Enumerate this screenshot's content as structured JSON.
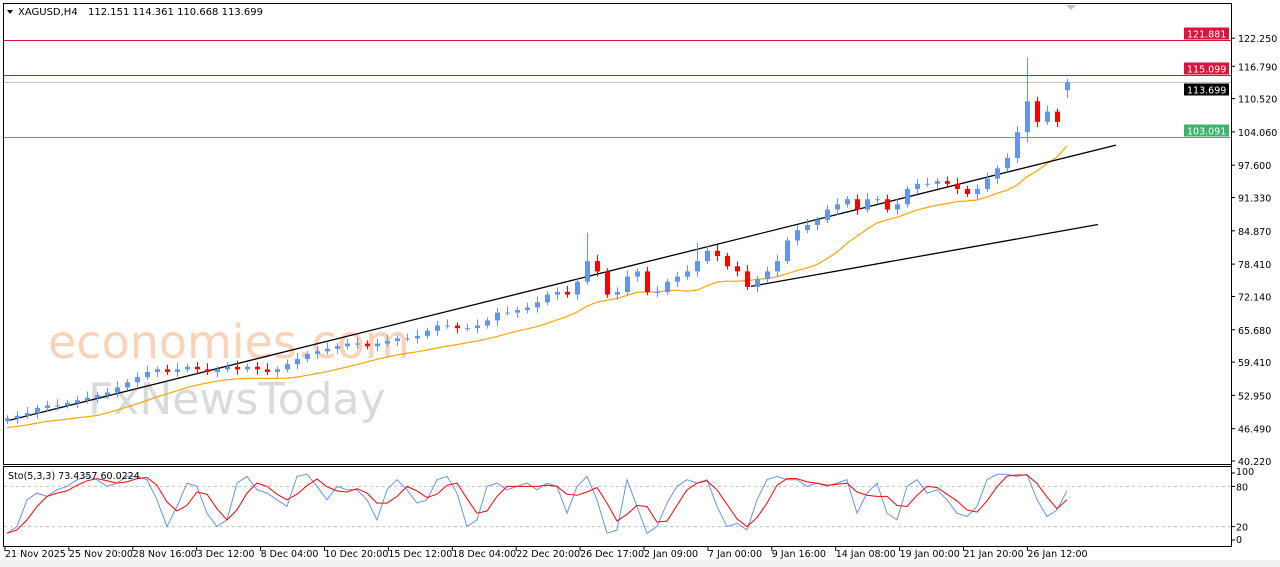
{
  "header": {
    "symbol": "XAGUSD,H4",
    "ohlc": "112.151 114.361 110.668 113.699"
  },
  "watermark": {
    "line1": "economies.com",
    "line2": "FxNewsToday"
  },
  "colors": {
    "bull": "#6495ED",
    "bear": "#FF0000",
    "ma": "#FFA500",
    "trend": "#000000",
    "resistance": "#DC143C",
    "support": "#3CB371",
    "current": "#C0C0C0",
    "stoch_main": "#6495ED",
    "stoch_signal": "#FF0000"
  },
  "chart_data": {
    "type": "candlestick",
    "symbol": "XAGUSD",
    "timeframe": "H4",
    "ylim": [
      40.22,
      123.25
    ],
    "yticks": [
      "122.250",
      "116.790",
      "110.520",
      "104.060",
      "97.600",
      "91.330",
      "84.870",
      "78.410",
      "72.140",
      "65.680",
      "59.410",
      "52.950",
      "46.490",
      "40.220"
    ],
    "ytick_values": [
      122.25,
      116.79,
      110.52,
      104.06,
      97.6,
      91.33,
      84.87,
      78.41,
      72.14,
      65.68,
      59.41,
      52.95,
      46.49,
      40.22
    ],
    "xticks": [
      "21 Nov 2025",
      "25 Nov 20:00",
      "28 Nov 16:00",
      "3 Dec 12:00",
      "8 Dec 04:00",
      "10 Dec 20:00",
      "15 Dec 12:00",
      "18 Dec 04:00",
      "22 Dec 20:00",
      "26 Dec 17:00",
      "2 Jan 09:00",
      "7 Jan 00:00",
      "9 Jan 16:00",
      "14 Jan 08:00",
      "19 Jan 00:00",
      "21 Jan 20:00",
      "26 Jan 12:00"
    ],
    "closes": [
      48.5,
      49,
      49.5,
      50.5,
      51,
      51,
      51.5,
      52,
      52.5,
      53,
      53.5,
      54.5,
      55.5,
      56.5,
      57.5,
      58,
      57.5,
      58,
      58.5,
      58,
      57.5,
      58,
      58.5,
      58,
      58.5,
      58,
      57.5,
      58,
      59,
      60,
      61,
      61.5,
      62,
      62.5,
      63,
      63,
      62.5,
      63,
      63.5,
      64,
      64,
      64.5,
      65.5,
      66.5,
      66.5,
      66,
      66,
      66.5,
      67.5,
      69,
      69,
      69.5,
      70,
      71,
      72.5,
      73,
      72.5,
      75,
      79,
      77,
      72.5,
      73,
      76,
      77,
      73,
      73,
      75,
      76,
      77,
      79,
      81,
      80,
      78,
      77,
      74,
      75.5,
      77,
      79,
      83,
      85,
      86,
      87,
      89,
      90,
      91,
      89,
      91,
      91,
      89,
      90,
      93,
      94,
      94,
      94.5,
      94,
      93,
      92,
      93,
      95,
      97,
      99,
      104,
      110,
      106,
      108,
      106,
      113.699
    ],
    "last_bar": {
      "open": 112.151,
      "high": 114.361,
      "low": 110.668,
      "close": 113.699
    },
    "spikes": [
      {
        "bar": 58,
        "high": 84.5
      },
      {
        "bar": 69,
        "high": 82.5
      },
      {
        "bar": 102,
        "high": 118.5,
        "low": 102
      }
    ],
    "horizontal_levels": [
      {
        "price": 121.881,
        "label": "121.881",
        "kind": "resistance"
      },
      {
        "price": 115.099,
        "label": "115.099",
        "kind": "resistance"
      },
      {
        "price": 113.699,
        "label": "113.699",
        "kind": "current"
      },
      {
        "price": 103.091,
        "label": "103.091",
        "kind": "support"
      }
    ],
    "trendlines": [
      {
        "bar1": 0,
        "price1": 48.0,
        "bar2": 110.9,
        "price2": 101.5
      },
      {
        "bar1": 74.4,
        "price1": 74.1,
        "bar2": 109.1,
        "price2": 86.1
      }
    ],
    "moving_average": {
      "period": 10
    },
    "stochastic": {
      "label": "Sto(5,3,3) 73.4357 60.0224",
      "levels": [
        20,
        80
      ],
      "yticks": [
        "100",
        "80",
        "20",
        "0"
      ],
      "ytick_values": [
        100,
        80,
        20,
        0
      ],
      "k": [
        10,
        20,
        60,
        70,
        65,
        75,
        80,
        90,
        95,
        90,
        80,
        85,
        95,
        95,
        90,
        60,
        20,
        50,
        85,
        80,
        40,
        20,
        30,
        85,
        95,
        75,
        70,
        60,
        50,
        95,
        98,
        80,
        60,
        80,
        75,
        75,
        60,
        30,
        75,
        90,
        75,
        55,
        60,
        90,
        95,
        70,
        20,
        30,
        80,
        85,
        75,
        80,
        85,
        75,
        85,
        80,
        40,
        80,
        95,
        60,
        10,
        15,
        90,
        50,
        10,
        20,
        55,
        80,
        90,
        85,
        90,
        50,
        20,
        25,
        15,
        60,
        90,
        95,
        90,
        90,
        80,
        85,
        80,
        85,
        90,
        40,
        70,
        85,
        40,
        30,
        80,
        90,
        70,
        75,
        60,
        40,
        35,
        50,
        90,
        98,
        98,
        95,
        98,
        60,
        35,
        45,
        73.4357
      ]
    }
  }
}
